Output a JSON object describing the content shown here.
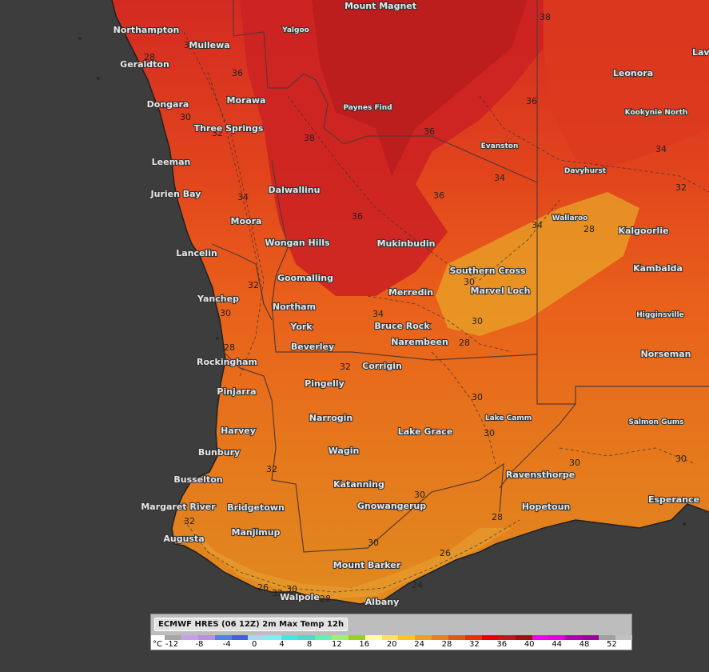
{
  "map": {
    "towns_large": [
      "Mount Magnet",
      "Northampton",
      "Mullewa",
      "Geraldton",
      "Morawa",
      "Dongara",
      "Three Springs",
      "Leeman",
      "Jurien Bay",
      "Dalwallinu",
      "Moora",
      "Lancelin",
      "Wongan Hills",
      "Mukinbudin",
      "Goomalling",
      "Yanchep",
      "Northam",
      "Merredin",
      "York",
      "Bruce Rock",
      "Beverley",
      "Narembeen",
      "Rockingham",
      "Corrigin",
      "Pingelly",
      "Pinjarra",
      "Narrogin",
      "Harvey",
      "Lake Grace",
      "Wagin",
      "Bunbury",
      "Busselton",
      "Katanning",
      "Margaret River",
      "Bridgetown",
      "Gnowangerup",
      "Manjimup",
      "Augusta",
      "Mount Barker",
      "Walpole",
      "Albany",
      "Leonora",
      "Kalgoorlie",
      "Kambalda",
      "Southern Cross",
      "Marvel Loch",
      "Norseman",
      "Ravensthorpe",
      "Hopetoun",
      "Esperance",
      "Laverton"
    ],
    "towns_small": [
      "Yalgoo",
      "Paynes Find",
      "Evanston",
      "Kookynie North",
      "Davyhurst",
      "Wallaroo",
      "Higginsville",
      "Lake Camm",
      "Salmon Gums"
    ],
    "contour_labels": [
      "38",
      "34",
      "28",
      "30",
      "32",
      "36",
      "34",
      "38",
      "36",
      "34",
      "32",
      "30",
      "28",
      "36",
      "36",
      "34",
      "32",
      "30",
      "28",
      "36",
      "34",
      "32",
      "34",
      "30",
      "28",
      "32",
      "30",
      "30",
      "32",
      "30",
      "30",
      "30",
      "28",
      "26",
      "24",
      "32",
      "30",
      "28",
      "26",
      "30"
    ]
  },
  "legend": {
    "title": "ECMWF HRES (06 12Z) 2m Max Temp 12h",
    "unit": "°C",
    "ticks": [
      "-12",
      "-8",
      "-4",
      "0",
      "4",
      "8",
      "12",
      "16",
      "20",
      "24",
      "28",
      "32",
      "36",
      "40",
      "44",
      "48",
      "52"
    ],
    "colors": [
      "#a6a6a6",
      "#c8a0e8",
      "#b890e0",
      "#5080e8",
      "#4060e0",
      "#a8d8f8",
      "#80f0f0",
      "#40e8e0",
      "#50d8c8",
      "#60f0b0",
      "#a0f070",
      "#98d020",
      "#ffffa0",
      "#ffe060",
      "#ffc020",
      "#f0a020",
      "#e88020",
      "#e05818",
      "#e83000",
      "#e80000",
      "#c01818",
      "#a01010",
      "#f000f0",
      "#e000e0",
      "#b000b0",
      "#a000a0",
      "#a0a0a0",
      "#c0c0c0"
    ]
  }
}
